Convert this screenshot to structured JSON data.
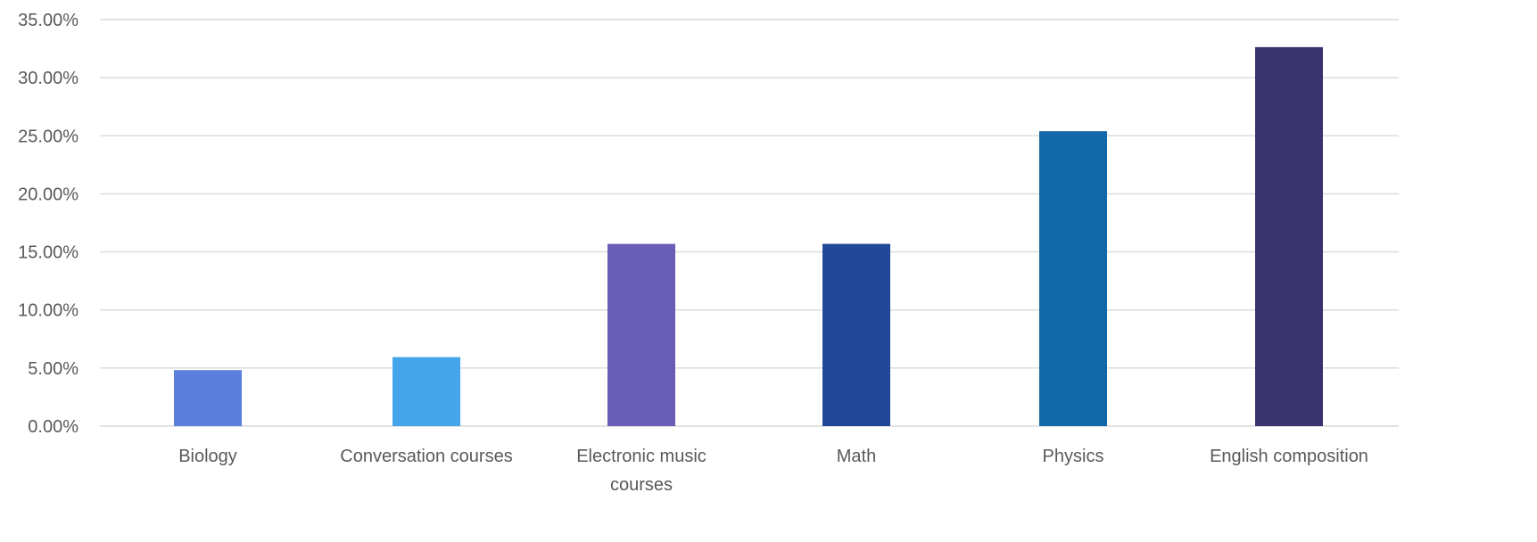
{
  "chart_data": {
    "type": "bar",
    "title": "",
    "xlabel": "",
    "ylabel": "",
    "categories": [
      [
        "Biology"
      ],
      [
        "Conversation courses"
      ],
      [
        "Electronic music",
        "courses"
      ],
      [
        "Math"
      ],
      [
        "Physics"
      ],
      [
        "English composition"
      ]
    ],
    "values": [
      4.82,
      5.94,
      15.69,
      15.69,
      25.39,
      32.63
    ],
    "bar_colors": [
      "#5b7fdc",
      "#44a5ea",
      "#6a5db7",
      "#214797",
      "#1268a8",
      "#38336f"
    ],
    "ylim": [
      0,
      35
    ],
    "y_ticks": [
      0,
      5,
      10,
      15,
      20,
      25,
      30,
      35
    ],
    "y_tick_labels": [
      "0.00%",
      "5.00%",
      "10.00%",
      "15.00%",
      "20.00%",
      "25.00%",
      "30.00%",
      "35.00%"
    ],
    "grid": true,
    "legend": "none",
    "colors": {
      "grid": "#d9d9d9",
      "text": "#595959",
      "background": "#ffffff"
    }
  }
}
